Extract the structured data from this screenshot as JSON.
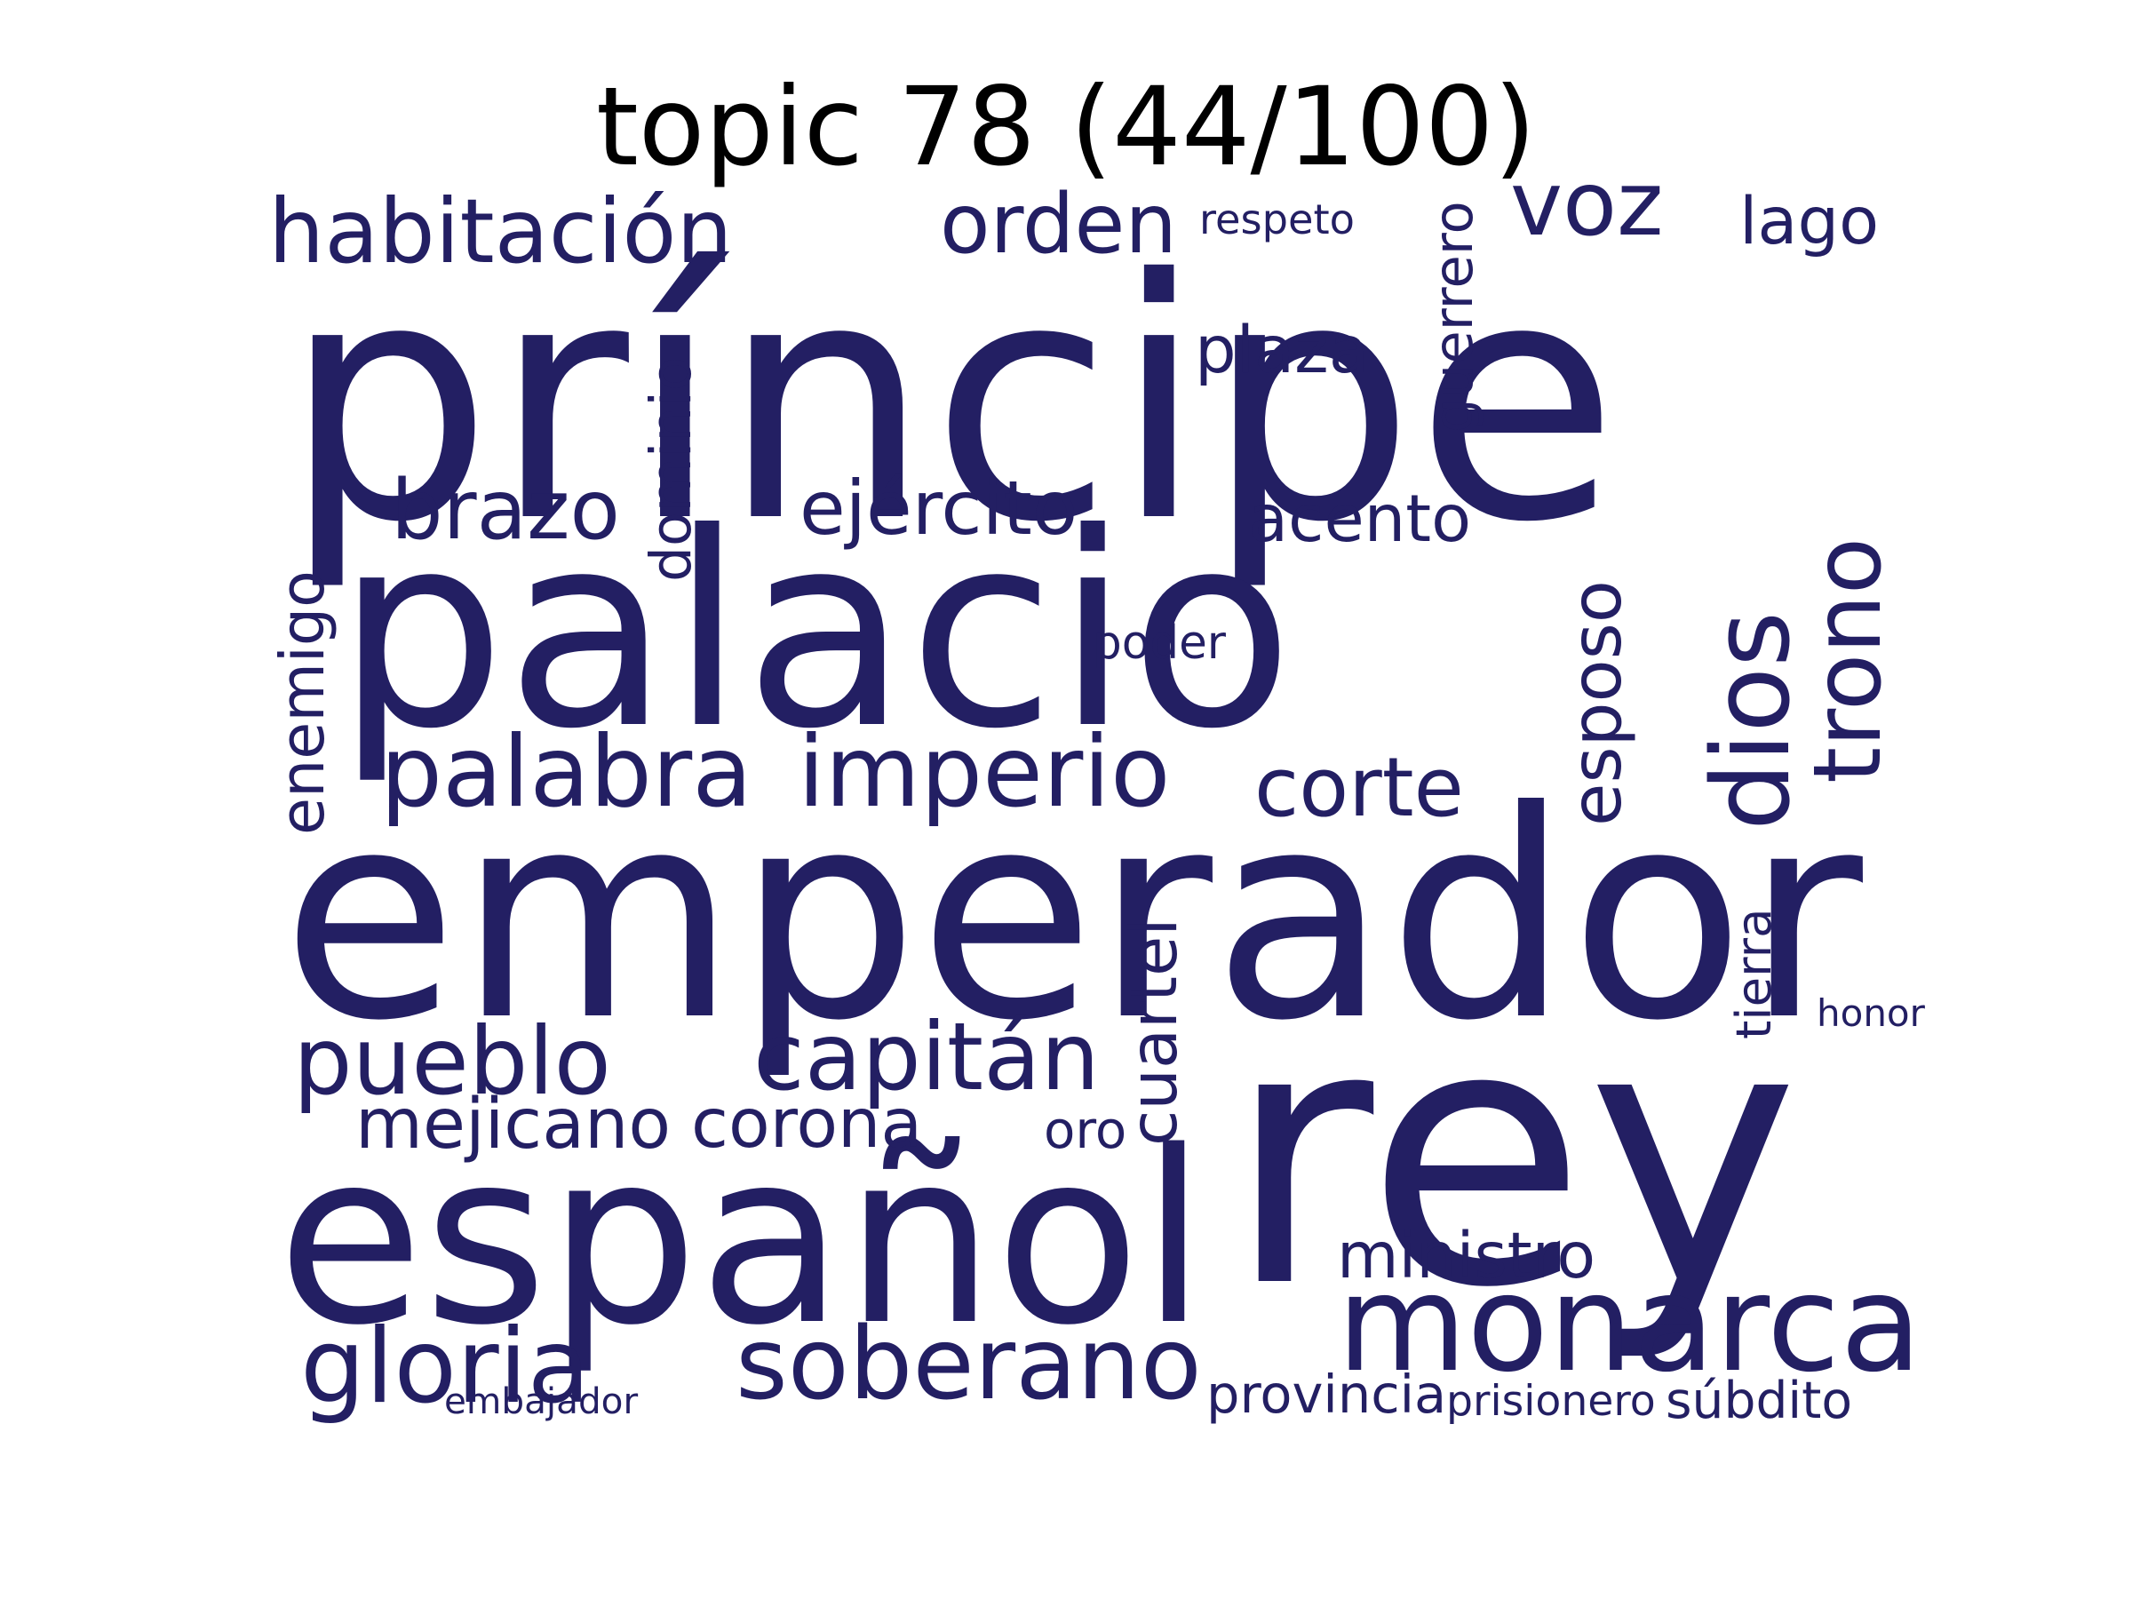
{
  "title": "topic 78 (44/100)",
  "word_color": "#231f63",
  "words": [
    "príncipe",
    "palacio",
    "emperador",
    "rey",
    "español",
    "monarca",
    "habitación",
    "orden",
    "voz",
    "lago",
    "respeto",
    "guerrero",
    "plaza",
    "dominio",
    "brazo",
    "ejército",
    "acento",
    "esposo",
    "dios",
    "trono",
    "enemigo",
    "poder",
    "palabra",
    "imperio",
    "corte",
    "cuartel",
    "tierra",
    "honor",
    "pueblo",
    "capitán",
    "mejicano",
    "corona",
    "oro",
    "ministro",
    "gloria",
    "soberano",
    "embajador",
    "provincia",
    "prisionero",
    "súbdito"
  ]
}
